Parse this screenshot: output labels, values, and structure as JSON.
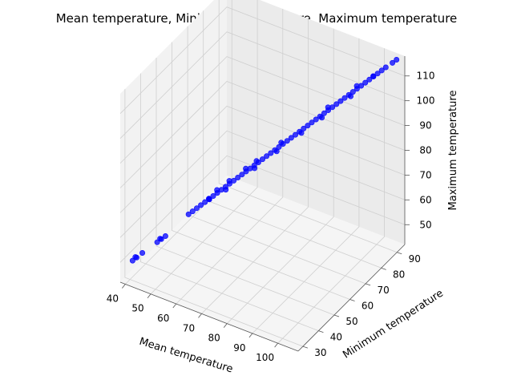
{
  "chart_data": {
    "type": "scatter",
    "projection": "3d",
    "title": "Mean temperature, Minimum temperature, Maximum temperature",
    "xlabel": "Mean temperature",
    "ylabel": "Minimum temperature",
    "zlabel": "Maximum temperature",
    "xlim": [
      38,
      108
    ],
    "ylim": [
      27,
      95
    ],
    "zlim": [
      42,
      118
    ],
    "xticks": [
      "40",
      "50",
      "60",
      "70",
      "80",
      "90",
      "100"
    ],
    "yticks": [
      "30",
      "40",
      "50",
      "60",
      "70",
      "80",
      "90"
    ],
    "zticks": [
      "50",
      "60",
      "70",
      "80",
      "90",
      "100",
      "110"
    ],
    "grid": true,
    "marker_color": "#0000ff",
    "points": [
      [
        41,
        30,
        50
      ],
      [
        42,
        31,
        51
      ],
      [
        43,
        33,
        52
      ],
      [
        41.5,
        31,
        51
      ],
      [
        47,
        36,
        56
      ],
      [
        48,
        37,
        57
      ],
      [
        49,
        38,
        58
      ],
      [
        47.5,
        37,
        57
      ],
      [
        55,
        43,
        66
      ],
      [
        56,
        44,
        67
      ],
      [
        57,
        45,
        68
      ],
      [
        58,
        46,
        69
      ],
      [
        59,
        47,
        70
      ],
      [
        60,
        48,
        71
      ],
      [
        61,
        49,
        72
      ],
      [
        62,
        50,
        73
      ],
      [
        60.5,
        47,
        72
      ],
      [
        59.5,
        49,
        70
      ],
      [
        63,
        51,
        74
      ],
      [
        64,
        52,
        75
      ],
      [
        62.5,
        49,
        75
      ],
      [
        63.5,
        53,
        73
      ],
      [
        65,
        53,
        76
      ],
      [
        66,
        54,
        77
      ],
      [
        65.5,
        52,
        78
      ],
      [
        67,
        55,
        78
      ],
      [
        68,
        56,
        79
      ],
      [
        69,
        57,
        80
      ],
      [
        70,
        58,
        81
      ],
      [
        69.5,
        56,
        82
      ],
      [
        70.5,
        60,
        80
      ],
      [
        71,
        59,
        82
      ],
      [
        72,
        60,
        83
      ],
      [
        73,
        61,
        84
      ],
      [
        72.5,
        58,
        85
      ],
      [
        74,
        62,
        85
      ],
      [
        75,
        63,
        86
      ],
      [
        76,
        64,
        87
      ],
      [
        75.5,
        66,
        85
      ],
      [
        77,
        65,
        88
      ],
      [
        78,
        66,
        89
      ],
      [
        79,
        67,
        90
      ],
      [
        78.5,
        64,
        91
      ],
      [
        80,
        68,
        91
      ],
      [
        81,
        69,
        92
      ],
      [
        82,
        70,
        93
      ],
      [
        81.5,
        72,
        91
      ],
      [
        83,
        71,
        94
      ],
      [
        84,
        72,
        95
      ],
      [
        85,
        73,
        96
      ],
      [
        86,
        74,
        97
      ],
      [
        87,
        75,
        98
      ],
      [
        86.5,
        77,
        96
      ],
      [
        88,
        76,
        99
      ],
      [
        89,
        77,
        100
      ],
      [
        90,
        78,
        101
      ],
      [
        89.5,
        76,
        102
      ],
      [
        91,
        79,
        102
      ],
      [
        92,
        80,
        103
      ],
      [
        93,
        81,
        104
      ],
      [
        94,
        82,
        105
      ],
      [
        93.5,
        84,
        103
      ],
      [
        95,
        83,
        106
      ],
      [
        96,
        84,
        107
      ],
      [
        97,
        85,
        108
      ],
      [
        96.5,
        83,
        109
      ],
      [
        98,
        86,
        109
      ],
      [
        99,
        87,
        110
      ],
      [
        100,
        88,
        111
      ],
      [
        101,
        89,
        112
      ],
      [
        102,
        90,
        113
      ],
      [
        100.5,
        87,
        112
      ],
      [
        103,
        91,
        114
      ],
      [
        105,
        92,
        116
      ],
      [
        106,
        93,
        117
      ]
    ]
  }
}
